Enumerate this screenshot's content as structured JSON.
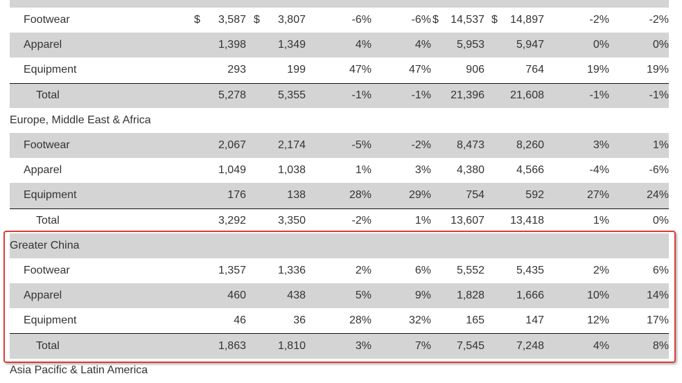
{
  "table": {
    "currency_symbol": "$",
    "sections": [
      {
        "items": [
          {
            "label": "Footwear",
            "currency": true,
            "values": [
              "3,587",
              "3,807",
              "-6%",
              "-6%",
              "14,537",
              "14,897",
              "-2%",
              "-2%"
            ]
          },
          {
            "label": "Apparel",
            "values": [
              "1,398",
              "1,349",
              "4%",
              "4%",
              "5,953",
              "5,947",
              "0%",
              "0%"
            ]
          },
          {
            "label": "Equipment",
            "values": [
              "293",
              "199",
              "47%",
              "47%",
              "906",
              "764",
              "19%",
              "19%"
            ]
          }
        ],
        "total": {
          "label": "Total",
          "values": [
            "5,278",
            "5,355",
            "-1%",
            "-1%",
            "21,396",
            "21,608",
            "-1%",
            "-1%"
          ]
        }
      },
      {
        "region": "Europe, Middle East & Africa",
        "items": [
          {
            "label": "Footwear",
            "values": [
              "2,067",
              "2,174",
              "-5%",
              "-2%",
              "8,473",
              "8,260",
              "3%",
              "1%"
            ]
          },
          {
            "label": "Apparel",
            "values": [
              "1,049",
              "1,038",
              "1%",
              "3%",
              "4,380",
              "4,566",
              "-4%",
              "-6%"
            ]
          },
          {
            "label": "Equipment",
            "values": [
              "176",
              "138",
              "28%",
              "29%",
              "754",
              "592",
              "27%",
              "24%"
            ]
          }
        ],
        "total": {
          "label": "Total",
          "values": [
            "3,292",
            "3,350",
            "-2%",
            "1%",
            "13,607",
            "13,418",
            "1%",
            "0%"
          ]
        }
      },
      {
        "region": "Greater China",
        "items": [
          {
            "label": "Footwear",
            "values": [
              "1,357",
              "1,336",
              "2%",
              "6%",
              "5,552",
              "5,435",
              "2%",
              "6%"
            ]
          },
          {
            "label": "Apparel",
            "values": [
              "460",
              "438",
              "5%",
              "9%",
              "1,828",
              "1,666",
              "10%",
              "14%"
            ]
          },
          {
            "label": "Equipment",
            "values": [
              "46",
              "36",
              "28%",
              "32%",
              "165",
              "147",
              "12%",
              "17%"
            ]
          }
        ],
        "total": {
          "label": "Total",
          "values": [
            "1,863",
            "1,810",
            "3%",
            "7%",
            "7,545",
            "7,248",
            "4%",
            "8%"
          ]
        }
      },
      {
        "region": "Asia Pacific & Latin America"
      }
    ]
  },
  "highlight": {
    "color": "#dc3b36"
  }
}
